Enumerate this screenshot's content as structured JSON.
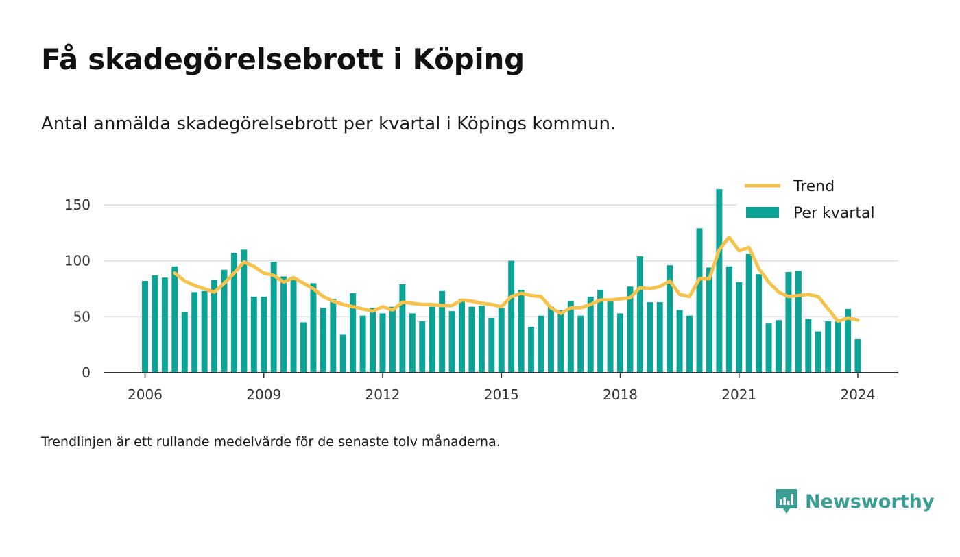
{
  "title": "Få skadegörelsebrott i Köping",
  "subtitle": "Antal anmälda skadegörelsebrott per kvartal i Köpings kommun.",
  "footnote": "Trendlinjen är ett rullande medelvärde för de senaste tolv månaderna.",
  "brand": {
    "name": "Newsworthy",
    "icon": "newsworthy-logo-icon",
    "color": "#3a9e94"
  },
  "chart_data": {
    "type": "bar",
    "x_ticks": [
      "2006",
      "2009",
      "2012",
      "2015",
      "2018",
      "2021",
      "2024"
    ],
    "y_ticks": [
      0,
      50,
      100,
      150
    ],
    "ylim": [
      0,
      175
    ],
    "grid": true,
    "legend_position": "top-right",
    "colors": {
      "bars": "#0aa396",
      "trend": "#f7c24c"
    },
    "x_start": {
      "year": 2006,
      "quarter": 1
    },
    "series": [
      {
        "name": "Per kvartal",
        "type": "bar",
        "values": [
          82,
          87,
          85,
          95,
          54,
          72,
          73,
          83,
          92,
          107,
          110,
          68,
          68,
          99,
          86,
          84,
          45,
          80,
          58,
          66,
          34,
          71,
          51,
          58,
          53,
          59,
          79,
          53,
          46,
          59,
          73,
          55,
          66,
          59,
          60,
          49,
          58,
          100,
          74,
          41,
          51,
          59,
          56,
          64,
          51,
          68,
          74,
          65,
          53,
          77,
          104,
          63,
          63,
          96,
          56,
          51,
          129,
          94,
          164,
          95,
          81,
          106,
          88,
          44,
          47,
          90,
          91,
          48,
          37,
          46,
          46,
          57,
          30
        ]
      },
      {
        "name": "Trend",
        "type": "line",
        "values": [
          null,
          null,
          null,
          89,
          82,
          78,
          75,
          72,
          80,
          89,
          99,
          95,
          89,
          87,
          81,
          85,
          80,
          75,
          68,
          64,
          61,
          59,
          57,
          55,
          59,
          56,
          63,
          62,
          61,
          61,
          60,
          60,
          65,
          64,
          62,
          61,
          59,
          68,
          71,
          69,
          68,
          58,
          53,
          58,
          58,
          61,
          65,
          65,
          66,
          67,
          76,
          75,
          77,
          82,
          70,
          68,
          84,
          84,
          110,
          121,
          109,
          112,
          93,
          81,
          72,
          68,
          69,
          70,
          68,
          57,
          46,
          49,
          47
        ]
      }
    ]
  }
}
